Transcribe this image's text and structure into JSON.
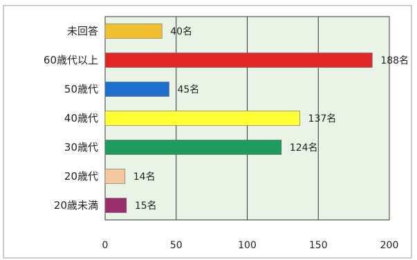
{
  "chart_data": {
    "type": "bar",
    "orientation": "horizontal",
    "categories": [
      "未回答",
      "60歳代以上",
      "50歳代",
      "40歳代",
      "30歳代",
      "20歳代",
      "20歳未満"
    ],
    "values": [
      40,
      188,
      45,
      137,
      124,
      14,
      15
    ],
    "value_labels": [
      "40名",
      "188名",
      "45名",
      "137名",
      "124名",
      "14名",
      "15名"
    ],
    "colors": [
      "#f0c030",
      "#e02626",
      "#1f6fd0",
      "#ffff33",
      "#1e9a5c",
      "#f5c8a0",
      "#9b2f6e"
    ],
    "xlim": [
      0,
      200
    ],
    "xticks": [
      0,
      50,
      100,
      150,
      200
    ],
    "grid": true,
    "plot_background": "#e9f3e6"
  }
}
